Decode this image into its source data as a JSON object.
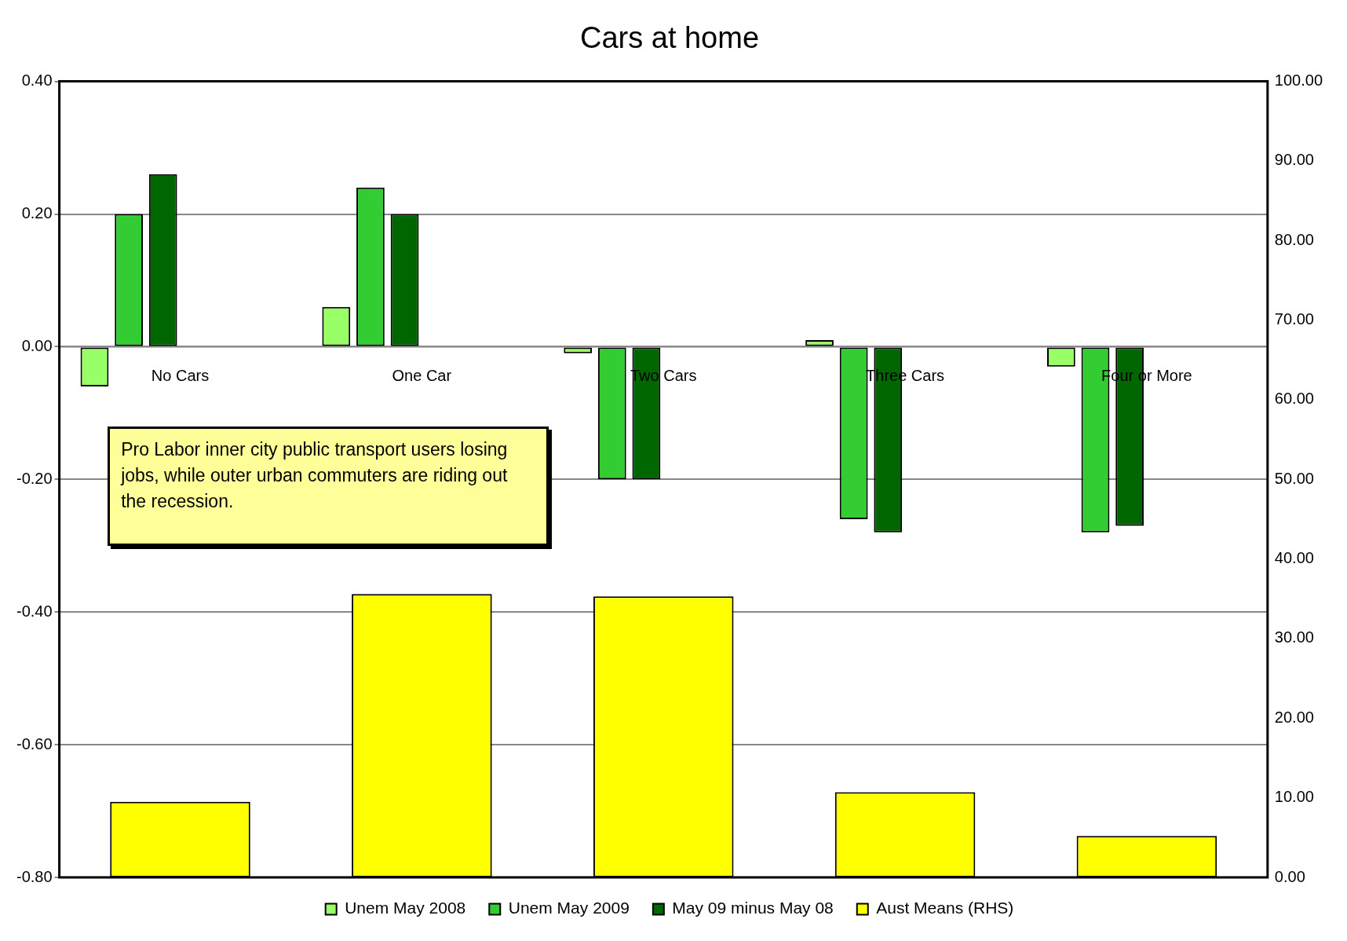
{
  "chart_data": {
    "type": "bar",
    "title": "Cars at home",
    "categories": [
      "No Cars",
      "One Car",
      "Two Cars",
      "Three Cars",
      "Four or More"
    ],
    "series": [
      {
        "name": "Unem May 2008",
        "color": "#99ff66",
        "values": [
          -0.06,
          0.06,
          -0.01,
          0.01,
          -0.03
        ]
      },
      {
        "name": "Unem May 2009",
        "color": "#33cc33",
        "values": [
          0.2,
          0.24,
          -0.2,
          -0.26,
          -0.28
        ]
      },
      {
        "name": "May 09 minus May 08",
        "color": "#006600",
        "values": [
          0.26,
          0.2,
          -0.2,
          -0.28,
          -0.27
        ]
      },
      {
        "name": "Aust Means (RHS)",
        "color": "#ffff00",
        "axis": "y2",
        "values": [
          9.5,
          35.6,
          35.3,
          10.7,
          5.2
        ]
      }
    ],
    "ylim": [
      -0.8,
      0.4
    ],
    "yticks": [
      {
        "value": -0.8,
        "label": "-0.80"
      },
      {
        "value": -0.6,
        "label": "-0.60"
      },
      {
        "value": -0.4,
        "label": "-0.40"
      },
      {
        "value": -0.2,
        "label": "-0.20"
      },
      {
        "value": 0,
        "label": "0.00"
      },
      {
        "value": 0.2,
        "label": "0.20"
      },
      {
        "value": 0.4,
        "label": "0.40"
      }
    ],
    "y2lim": [
      0,
      100
    ],
    "y2ticks": [
      {
        "value": 0,
        "label": "0.00"
      },
      {
        "value": 10,
        "label": "10.00"
      },
      {
        "value": 20,
        "label": "20.00"
      },
      {
        "value": 30,
        "label": "30.00"
      },
      {
        "value": 40,
        "label": "40.00"
      },
      {
        "value": 50,
        "label": "50.00"
      },
      {
        "value": 60,
        "label": "60.00"
      },
      {
        "value": 70,
        "label": "70.00"
      },
      {
        "value": 80,
        "label": "80.00"
      },
      {
        "value": 90,
        "label": "90.00"
      },
      {
        "value": 100,
        "label": "100.00"
      }
    ],
    "grid": "y",
    "legend": "bottom",
    "annotations": [
      "Pro Labor inner city public transport users losing jobs, while outer urban commuters are riding out the recession."
    ]
  }
}
